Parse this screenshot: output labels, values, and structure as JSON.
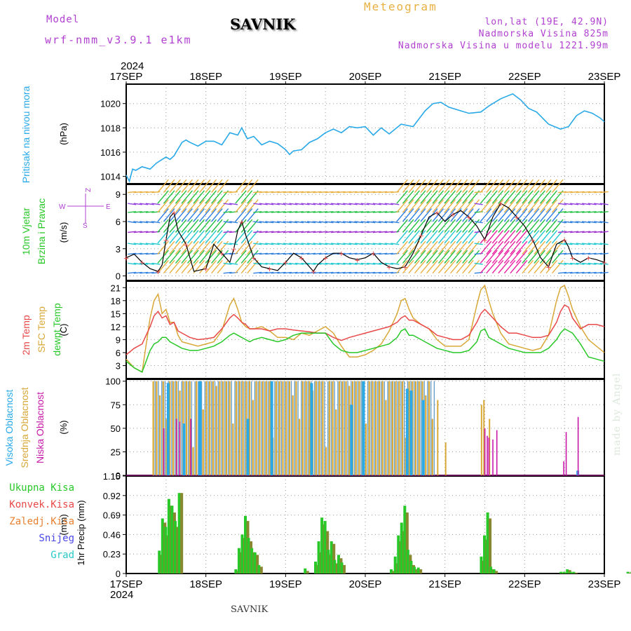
{
  "header": {
    "model_label": "Model",
    "model_name": "wrf-nmm_v3.9.1 e1km",
    "station": "SAVNIK",
    "product": "Meteogram",
    "coords": "lon,lat (19E, 42.9N)",
    "elevation": "Nadmorska Visina 825m",
    "model_elevation": "Nadmorska Visina u modelu 1221.99m",
    "credit": "made by Angel",
    "footer_station": "SAVNIK"
  },
  "time_axis": {
    "year": "2024",
    "labels": [
      "17SEP",
      "18SEP",
      "19SEP",
      "20SEP",
      "21SEP",
      "22SEP",
      "23SEP"
    ]
  },
  "colors": {
    "pressure": "#29a9e8",
    "precip_total": "#28c828",
    "precip_conv": "#888830",
    "temp_2m": "#e84848",
    "temp_sfc": "#d8a838",
    "dewpoint": "#28c828",
    "cloud_high": "#29a9e8",
    "cloud_mid": "#d8a838",
    "cloud_low": "#c818a8",
    "wind_speed": "#000000",
    "wind_obs": "#e84848"
  },
  "chart_data": [
    {
      "type": "line",
      "id": "pressure",
      "ylabel": "Pritisak na nivou mora",
      "unit": "(hPa)",
      "ylim": [
        1013.4,
        1021.6
      ],
      "yticks": [
        1014,
        1016,
        1018,
        1020
      ],
      "x_days": [
        0.0,
        0.04,
        0.08,
        0.12,
        0.2,
        0.3,
        0.38,
        0.45,
        0.5,
        0.55,
        0.6,
        0.7,
        0.75,
        0.8,
        0.9,
        1.0,
        1.1,
        1.2,
        1.3,
        1.4,
        1.45,
        1.52,
        1.6,
        1.7,
        1.8,
        1.9,
        2.0,
        2.05,
        2.1,
        2.2,
        2.3,
        2.4,
        2.5,
        2.6,
        2.7,
        2.8,
        2.9,
        3.0,
        3.1,
        3.2,
        3.3,
        3.45,
        3.6,
        3.75,
        3.85,
        3.95,
        4.05,
        4.15,
        4.3,
        4.45,
        4.55,
        4.7,
        4.85,
        4.95,
        5.05,
        5.15,
        5.3,
        5.45,
        5.55,
        5.65,
        5.75,
        5.85,
        5.95,
        6.0
      ],
      "values": [
        1014.1,
        1013.6,
        1014.6,
        1014.5,
        1014.8,
        1014.6,
        1015.1,
        1015.4,
        1015.6,
        1015.4,
        1015.7,
        1016.8,
        1017.0,
        1016.8,
        1016.5,
        1016.9,
        1016.9,
        1016.6,
        1017.6,
        1017.4,
        1018.0,
        1017.1,
        1017.3,
        1016.6,
        1016.9,
        1016.7,
        1016.2,
        1015.8,
        1016.1,
        1016.2,
        1016.8,
        1017.1,
        1017.6,
        1017.9,
        1017.6,
        1018.1,
        1018.0,
        1018.1,
        1017.4,
        1018.0,
        1017.5,
        1018.3,
        1018.1,
        1019.4,
        1020.0,
        1020.1,
        1019.7,
        1019.5,
        1019.2,
        1019.3,
        1019.8,
        1020.4,
        1020.8,
        1020.3,
        1019.6,
        1019.3,
        1018.3,
        1017.9,
        1018.1,
        1019.0,
        1019.4,
        1019.2,
        1018.8,
        1018.5
      ]
    },
    {
      "type": "line",
      "id": "wind",
      "ylabel": "10m Vjetar",
      "ylabel2": "Brzina i Pravac",
      "unit": "(m/s)",
      "compass": {
        "north": "Z",
        "west": "W",
        "east": "E",
        "south": "S"
      },
      "ylim": [
        -0.5,
        10.1
      ],
      "yticks": [
        0,
        3,
        6,
        9
      ],
      "x_days": [
        0.0,
        0.1,
        0.2,
        0.3,
        0.4,
        0.45,
        0.5,
        0.55,
        0.6,
        0.65,
        0.75,
        0.85,
        1.0,
        1.1,
        1.2,
        1.3,
        1.35,
        1.4,
        1.45,
        1.5,
        1.6,
        1.7,
        1.8,
        1.9,
        2.0,
        2.1,
        2.2,
        2.3,
        2.35,
        2.4,
        2.5,
        2.6,
        2.7,
        2.8,
        2.9,
        3.0,
        3.1,
        3.2,
        3.3,
        3.4,
        3.5,
        3.6,
        3.7,
        3.8,
        3.9,
        4.0,
        4.1,
        4.2,
        4.3,
        4.4,
        4.5,
        4.6,
        4.7,
        4.8,
        4.9,
        5.0,
        5.1,
        5.2,
        5.3,
        5.4,
        5.5,
        5.55,
        5.6,
        5.7,
        5.8,
        5.9,
        6.0
      ],
      "values": [
        2.0,
        2.4,
        1.5,
        0.8,
        0.5,
        1.2,
        4.0,
        6.5,
        7.0,
        5.0,
        3.5,
        0.5,
        0.8,
        3.5,
        2.5,
        1.5,
        3.0,
        5.0,
        6.0,
        4.5,
        2.0,
        1.0,
        0.8,
        0.6,
        1.5,
        2.5,
        2.0,
        1.0,
        0.5,
        1.2,
        2.0,
        2.5,
        2.5,
        2.0,
        1.8,
        2.0,
        2.5,
        1.5,
        1.0,
        0.8,
        1.0,
        2.5,
        4.5,
        6.5,
        7.0,
        6.0,
        6.8,
        7.2,
        6.5,
        5.5,
        4.0,
        6.5,
        8.0,
        7.5,
        6.5,
        5.5,
        4.0,
        2.0,
        1.0,
        3.5,
        4.0,
        3.2,
        2.0,
        1.5,
        2.0,
        1.8,
        1.5
      ]
    },
    {
      "type": "line",
      "id": "temperature",
      "ylabel": "2m Temp",
      "ylabel2": "SFC Temp",
      "ylabel3": "dewpt Temp",
      "unit": "(C)",
      "ylim": [
        0,
        22.5
      ],
      "yticks": [
        3,
        6,
        9,
        12,
        15,
        18,
        21
      ],
      "x_days": [
        0.0,
        0.1,
        0.2,
        0.3,
        0.35,
        0.4,
        0.45,
        0.5,
        0.55,
        0.6,
        0.65,
        0.7,
        0.8,
        0.9,
        1.0,
        1.1,
        1.2,
        1.3,
        1.35,
        1.4,
        1.45,
        1.5,
        1.55,
        1.6,
        1.7,
        1.8,
        1.9,
        2.0,
        2.1,
        2.2,
        2.3,
        2.4,
        2.5,
        2.6,
        2.7,
        2.8,
        2.9,
        3.0,
        3.1,
        3.2,
        3.3,
        3.4,
        3.45,
        3.5,
        3.55,
        3.6,
        3.7,
        3.8,
        3.9,
        4.0,
        4.1,
        4.2,
        4.3,
        4.4,
        4.45,
        4.5,
        4.55,
        4.6,
        4.7,
        4.8,
        4.9,
        5.0,
        5.1,
        5.2,
        5.3,
        5.4,
        5.45,
        5.5,
        5.55,
        5.6,
        5.7,
        5.8,
        5.9,
        6.0
      ],
      "t2m": [
        5.5,
        7.0,
        8.0,
        12.0,
        14.5,
        15.5,
        14.0,
        14.5,
        12.5,
        13.0,
        11.0,
        10.5,
        9.5,
        9.0,
        9.2,
        9.5,
        11.5,
        14.0,
        14.8,
        14.0,
        13.0,
        12.5,
        11.5,
        11.5,
        11.5,
        11.0,
        11.5,
        11.5,
        11.2,
        11.0,
        10.8,
        10.5,
        10.5,
        9.5,
        8.8,
        9.5,
        10.0,
        10.5,
        11.0,
        11.5,
        12.0,
        13.0,
        14.0,
        14.5,
        13.5,
        13.5,
        12.5,
        11.5,
        10.0,
        9.5,
        9.0,
        9.0,
        10.0,
        13.0,
        15.0,
        16.0,
        15.0,
        14.0,
        12.0,
        10.5,
        10.5,
        10.0,
        9.5,
        9.5,
        10.0,
        13.0,
        15.5,
        17.0,
        16.5,
        14.0,
        11.5,
        12.5,
        12.5,
        12.0
      ],
      "tsfc": [
        4.5,
        2.5,
        1.5,
        14.0,
        18.0,
        19.5,
        15.0,
        16.0,
        13.0,
        13.0,
        10.0,
        8.5,
        8.0,
        7.5,
        8.0,
        8.5,
        11.0,
        17.0,
        18.5,
        16.0,
        13.0,
        12.0,
        11.5,
        11.5,
        12.0,
        11.0,
        9.5,
        9.5,
        9.0,
        10.5,
        10.0,
        11.0,
        12.0,
        10.5,
        7.5,
        5.0,
        5.0,
        5.5,
        6.5,
        8.0,
        11.0,
        15.0,
        18.0,
        18.5,
        16.0,
        14.0,
        12.5,
        11.5,
        9.0,
        7.5,
        7.5,
        7.5,
        9.0,
        17.0,
        20.5,
        21.5,
        18.0,
        15.0,
        10.5,
        8.0,
        7.5,
        7.0,
        6.5,
        7.0,
        10.0,
        18.0,
        21.0,
        21.5,
        19.0,
        16.0,
        12.0,
        9.0,
        7.5,
        6.0
      ],
      "dewpt": [
        4.0,
        2.5,
        1.5,
        6.5,
        8.0,
        8.5,
        9.5,
        9.5,
        8.5,
        8.0,
        7.5,
        7.0,
        6.5,
        6.5,
        7.0,
        7.5,
        8.5,
        10.0,
        10.5,
        10.0,
        9.5,
        9.0,
        8.5,
        9.0,
        9.5,
        9.0,
        8.5,
        9.0,
        10.0,
        10.5,
        10.5,
        10.5,
        10.5,
        8.0,
        6.5,
        6.0,
        6.0,
        6.5,
        7.0,
        7.5,
        8.0,
        9.5,
        11.0,
        11.5,
        10.0,
        10.0,
        9.0,
        8.0,
        7.0,
        6.5,
        6.0,
        6.0,
        6.5,
        8.5,
        11.0,
        11.5,
        9.5,
        9.0,
        8.0,
        7.0,
        6.5,
        6.0,
        6.0,
        6.0,
        7.0,
        9.0,
        10.5,
        11.5,
        11.0,
        10.5,
        8.0,
        5.0,
        4.5,
        4.0
      ]
    },
    {
      "type": "bar",
      "id": "clouds",
      "ylabel": "Visoka Oblacnost",
      "ylabel2": "Srednja Oblacnost",
      "ylabel3": "Niska Oblacnost",
      "unit": "(%)",
      "ylim": [
        0,
        102
      ],
      "yticks": [
        0,
        25,
        50,
        75,
        100
      ],
      "bar_step_days": 0.0417,
      "mid_pattern_first_day": 0.33,
      "mid_pattern_last_day": 3.85,
      "mid_pattern": [
        100,
        100,
        85,
        100,
        60,
        100,
        100,
        100,
        90,
        100,
        100,
        100,
        30,
        100,
        100,
        70,
        100,
        100,
        100,
        95,
        100,
        100,
        100,
        100,
        55,
        100,
        100,
        100,
        100,
        100,
        80,
        100,
        100,
        100,
        100,
        100,
        40,
        100,
        100,
        100
      ],
      "high_spikes": [
        [
          0.5,
          98
        ],
        [
          0.7,
          55
        ],
        [
          0.9,
          100
        ],
        [
          1.5,
          60
        ],
        [
          1.8,
          100
        ],
        [
          2.3,
          98
        ],
        [
          2.8,
          75
        ],
        [
          2.95,
          100
        ],
        [
          3.5,
          92
        ],
        [
          3.55,
          90
        ],
        [
          3.7,
          80
        ]
      ],
      "low_spikes": [
        [
          0.42,
          50
        ],
        [
          0.58,
          60
        ],
        [
          0.62,
          57
        ],
        [
          0.76,
          60
        ],
        [
          4.45,
          50
        ],
        [
          4.48,
          42
        ],
        [
          4.5,
          40
        ],
        [
          4.55,
          38
        ],
        [
          4.6,
          48
        ],
        [
          5.44,
          15
        ],
        [
          5.47,
          46
        ],
        [
          5.62,
          62
        ]
      ],
      "mid_extra": [
        [
          3.9,
          80
        ],
        [
          4.0,
          35
        ],
        [
          4.45,
          75
        ],
        [
          4.48,
          80
        ],
        [
          4.55,
          60
        ]
      ],
      "high_extra": [
        [
          5.64,
          5
        ]
      ]
    },
    {
      "type": "bar",
      "id": "precipitation",
      "ylabel": "1hr Precip",
      "unit": "(mm)",
      "legend": [
        "Ukupna Kisa",
        "Konvek.Kisa",
        "Zaledj.Kisa",
        "Snijeg",
        "Grad"
      ],
      "ylim": [
        0,
        1.15
      ],
      "yticks": [
        0,
        0.23,
        0.46,
        0.69,
        0.92,
        1.15
      ],
      "ytick_labels": [
        "0",
        "0.23",
        "0.46",
        "0.69",
        "0.92",
        "1.15"
      ],
      "x_days": [
        0.42,
        0.46,
        0.5,
        0.54,
        0.58,
        0.62,
        0.67,
        1.38,
        1.42,
        1.46,
        1.5,
        1.54,
        1.58,
        1.62,
        1.67,
        2.25,
        2.38,
        2.42,
        2.46,
        2.5,
        2.54,
        2.58,
        2.62,
        2.67,
        2.71,
        3.33,
        3.38,
        3.42,
        3.46,
        3.5,
        3.54,
        3.58,
        3.62,
        3.67,
        4.46,
        4.5,
        4.54,
        4.58,
        4.62,
        5.46,
        5.5,
        5.54,
        5.58,
        5.62,
        6.3,
        6.35
      ],
      "total": [
        0.27,
        0.65,
        0.55,
        0.88,
        0.8,
        0.62,
        0.95,
        0.05,
        0.3,
        0.46,
        0.68,
        0.42,
        0.3,
        0.25,
        0.1,
        0.06,
        0.14,
        0.38,
        0.66,
        0.62,
        0.28,
        0.38,
        0.16,
        0.22,
        0.13,
        0.05,
        0.2,
        0.45,
        0.6,
        0.8,
        0.28,
        0.15,
        0.08,
        0.07,
        0.2,
        0.45,
        0.72,
        0.08,
        0.05,
        0.02,
        0.02,
        0.05,
        0.02,
        0.02,
        0.02,
        0.02
      ],
      "convective": [
        0.22,
        0.6,
        0.45,
        0.8,
        0.72,
        0.55,
        0.95,
        0.03,
        0.25,
        0.42,
        0.62,
        0.38,
        0.25,
        0.22,
        0.08,
        0.03,
        0.1,
        0.25,
        0.58,
        0.5,
        0.22,
        0.35,
        0.12,
        0.18,
        0.1,
        0.03,
        0.12,
        0.38,
        0.5,
        0.72,
        0.22,
        0.1,
        0.05,
        0.05,
        0.15,
        0.4,
        0.65,
        0.05,
        0.03,
        0.01,
        0.01,
        0.04,
        0.01,
        0.01,
        0.01,
        0.01
      ]
    }
  ]
}
